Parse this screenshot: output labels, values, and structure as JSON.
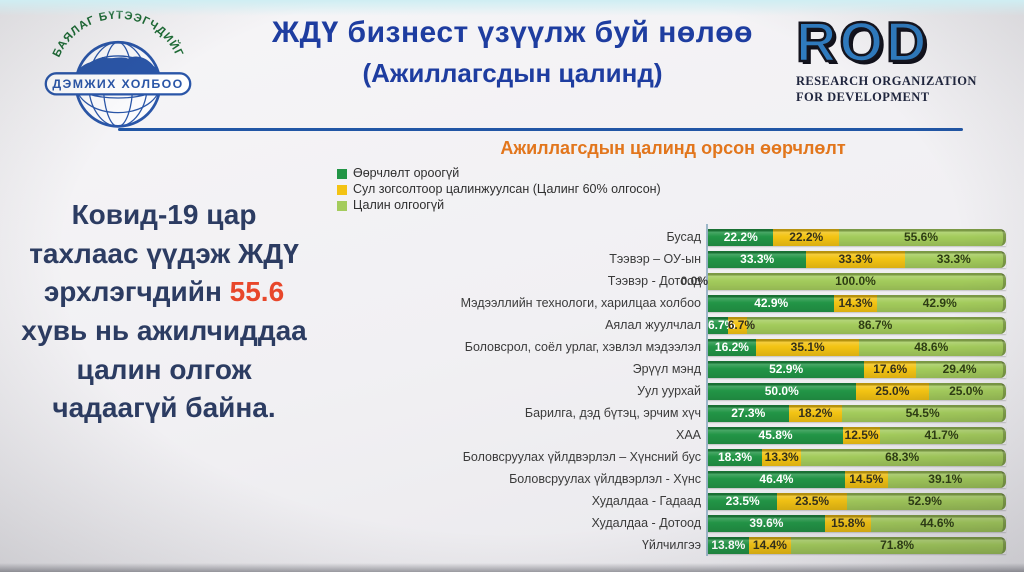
{
  "header": {
    "title_line1": "ЖДҮ бизнест үзүүлж буй нөлөө",
    "title_line2": "(Ажиллагсдын цалинд)",
    "left_logo": {
      "arc_text": "БАЯЛАГ БҮТЭЭГЧДИЙГ",
      "banner_text": "ДЭМЖИХ ХОЛБОО"
    },
    "rod_logo": {
      "acronym": "ROD",
      "line1": "RESEARCH ORGANIZATION",
      "line2": "FOR DEVELOPMENT"
    }
  },
  "sidebar_text": {
    "before": "Ковид-19 цар тахлаас үүдэж ЖДҮ эрхлэгчдийн ",
    "highlight": "55.6",
    "after": " хувь нь ажилчиддаа цалин олгож чадаагүй байна.",
    "highlight_color": "#e8472b"
  },
  "chart_data": {
    "type": "bar",
    "orientation": "horizontal-stacked",
    "title": "Ажиллагсдын цалинд орсон өөрчлөлт",
    "title_color": "#e2761c",
    "unit": "%",
    "xlim": [
      0,
      100
    ],
    "legend_position": "top-left",
    "legend": [
      {
        "label": "Өөрчлөлт ороогүй",
        "color": "#229546"
      },
      {
        "label": "Сул зогсолтоор цалинжуулсан (Цалинг 60% олгосон)",
        "color": "#f3c313"
      },
      {
        "label": "Цалин олгоогүй",
        "color": "#a4cc5c"
      }
    ],
    "categories": [
      "Бусад",
      "Тээвэр – ОУ-ын",
      "Тээвэр - Дотоод",
      "Мэдээллийн технологи, харилцаа холбоо",
      "Аялал жуулчлал",
      "Боловсрол, соёл урлаг, хэвлэл мэдээлэл",
      "Эрүүл мэнд",
      "Уул уурхай",
      "Барилга, дэд бүтэц, эрчим хүч",
      "ХАА",
      "Боловсруулах үйлдвэрлэл – Хүнсний бус",
      "Боловсруулах үйлдвэрлэл - Хүнс",
      "Худалдаа - Гадаад",
      "Худалдаа - Дотоод",
      "Үйлчилгээ"
    ],
    "rows": [
      {
        "category": "Бусад",
        "values": [
          22.2,
          22.2,
          55.6
        ],
        "labels": [
          "22.2%",
          "22.2%",
          "55.6%"
        ]
      },
      {
        "category": "Тээвэр – ОУ-ын",
        "values": [
          33.3,
          33.3,
          33.3
        ],
        "labels": [
          "33.3%",
          "33.3%",
          "33.3%"
        ]
      },
      {
        "category": "Тээвэр - Дотоод",
        "values": [
          0,
          0,
          100
        ],
        "labels": [
          "0.0%",
          "",
          "100.0%"
        ]
      },
      {
        "category": "Мэдээллийн технологи, харилцаа холбоо",
        "values": [
          42.9,
          14.3,
          42.9
        ],
        "labels": [
          "42.9%",
          "14.3%",
          "42.9%"
        ]
      },
      {
        "category": "Аялал жуулчлал",
        "values": [
          6.7,
          6.7,
          86.7
        ],
        "labels": [
          "6.7%",
          "6.7%",
          "86.7%"
        ]
      },
      {
        "category": "Боловсрол, соёл урлаг, хэвлэл мэдээлэл",
        "values": [
          16.2,
          35.1,
          48.6
        ],
        "labels": [
          "16.2%",
          "35.1%",
          "48.6%"
        ]
      },
      {
        "category": "Эрүүл мэнд",
        "values": [
          52.9,
          17.6,
          29.4
        ],
        "labels": [
          "52.9%",
          "17.6%",
          "29.4%"
        ]
      },
      {
        "category": "Уул уурхай",
        "values": [
          50.0,
          25.0,
          25.0
        ],
        "labels": [
          "50.0%",
          "25.0%",
          "25.0%"
        ]
      },
      {
        "category": "Барилга, дэд бүтэц, эрчим хүч",
        "values": [
          27.3,
          18.2,
          54.5
        ],
        "labels": [
          "27.3%",
          "18.2%",
          "54.5%"
        ]
      },
      {
        "category": "ХАА",
        "values": [
          45.8,
          12.5,
          41.7
        ],
        "labels": [
          "45.8%",
          "12.5%",
          "41.7%"
        ]
      },
      {
        "category": "Боловсруулах үйлдвэрлэл – Хүнсний бус",
        "values": [
          18.3,
          13.3,
          68.3
        ],
        "labels": [
          "18.3%",
          "13.3%",
          "68.3%"
        ]
      },
      {
        "category": "Боловсруулах үйлдвэрлэл - Хүнс",
        "values": [
          46.4,
          14.5,
          39.1
        ],
        "labels": [
          "46.4%",
          "14.5%",
          "39.1%"
        ]
      },
      {
        "category": "Худалдаа - Гадаад",
        "values": [
          23.5,
          23.5,
          52.9
        ],
        "labels": [
          "23.5%",
          "23.5%",
          "52.9%"
        ]
      },
      {
        "category": "Худалдаа - Дотоод",
        "values": [
          39.6,
          15.8,
          44.6
        ],
        "labels": [
          "39.6%",
          "15.8%",
          "44.6%"
        ]
      },
      {
        "category": "Үйлчилгээ",
        "values": [
          13.8,
          14.4,
          71.8
        ],
        "labels": [
          "13.8%",
          "14.4%",
          "71.8%"
        ]
      }
    ]
  }
}
